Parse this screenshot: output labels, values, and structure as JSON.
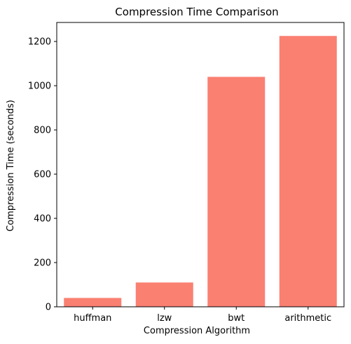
{
  "chart_data": {
    "type": "bar",
    "title": "Compression Time Comparison",
    "xlabel": "Compression Algorithm",
    "ylabel": "Compression Time (seconds)",
    "categories": [
      "huffman",
      "lzw",
      "bwt",
      "arithmetic"
    ],
    "values": [
      40,
      110,
      1040,
      1225
    ],
    "ylim": [
      0,
      1286
    ],
    "yticks": [
      0,
      200,
      400,
      600,
      800,
      1000,
      1200
    ],
    "bar_color": "#fa8072",
    "grid": false,
    "legend": "none"
  }
}
